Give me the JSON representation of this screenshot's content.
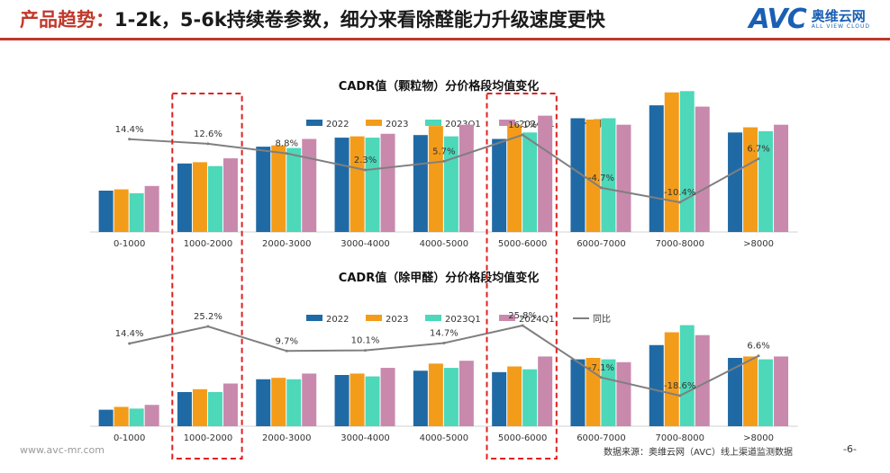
{
  "header": {
    "title_prefix": "产品趋势：",
    "title_main": "1-2k，5-6k持续卷参数，细分来看除醛能力升级速度更快",
    "logo_text": "AVC",
    "logo_cn": "奥维云网",
    "logo_en": "ALL VIEW CLOUD"
  },
  "footer": {
    "website": "www.avc-mr.com",
    "source": "数据来源：奥维云网（AVC）线上渠道监测数据",
    "page": "-6-"
  },
  "colors": {
    "2022": "#1f6aa5",
    "2023": "#f39c1a",
    "2023Q1": "#4cd8b9",
    "2024Q1": "#c989ad",
    "yoy": "#7f7f7f",
    "accent": "#c0392b",
    "highlight_box": "#e02020"
  },
  "chart_data": [
    {
      "type": "bar",
      "title": "CADR值（颗粒物）分价格段均值变化",
      "categories": [
        "0-1000",
        "1000-2000",
        "2000-3000",
        "3000-4000",
        "4000-5000",
        "5000-6000",
        "6000-7000",
        "7000-8000",
        ">8000"
      ],
      "series": [
        {
          "name": "2022",
          "values": [
            160,
            265,
            330,
            365,
            375,
            360,
            440,
            490,
            385
          ]
        },
        {
          "name": "2023",
          "values": [
            165,
            270,
            335,
            370,
            410,
            415,
            435,
            540,
            405
          ]
        },
        {
          "name": "2023Q1",
          "values": [
            150,
            255,
            325,
            365,
            370,
            385,
            440,
            545,
            390
          ]
        },
        {
          "name": "2024Q1",
          "values": [
            178,
            285,
            360,
            380,
            415,
            450,
            415,
            485,
            415
          ]
        }
      ],
      "line": {
        "name": "同比",
        "values": [
          14.4,
          12.6,
          8.8,
          2.3,
          5.7,
          16.1,
          -4.7,
          -10.4,
          6.7
        ],
        "labels": [
          "14.4%",
          "12.6%",
          "8.8%",
          "2.3%",
          "5.7%",
          "16.1%",
          "-4.7%",
          "-10.4%",
          "6.7%"
        ]
      },
      "ylim": [
        0,
        800
      ],
      "legend": "top-center"
    },
    {
      "type": "bar",
      "title": "CADR值（除甲醛）分价格段均值变化",
      "categories": [
        "0-1000",
        "1000-2000",
        "2000-3000",
        "3000-4000",
        "4000-5000",
        "5000-6000",
        "6000-7000",
        "7000-8000",
        ">8000"
      ],
      "series": [
        {
          "name": "2022",
          "values": [
            58,
            120,
            165,
            180,
            195,
            190,
            235,
            285,
            240
          ]
        },
        {
          "name": "2023",
          "values": [
            68,
            130,
            170,
            185,
            220,
            210,
            240,
            330,
            245
          ]
        },
        {
          "name": "2023Q1",
          "values": [
            62,
            120,
            165,
            175,
            205,
            200,
            235,
            355,
            235
          ]
        },
        {
          "name": "2024Q1",
          "values": [
            75,
            150,
            185,
            205,
            230,
            245,
            225,
            320,
            245
          ]
        }
      ],
      "line": {
        "name": "同比",
        "values": [
          14.4,
          25.2,
          9.7,
          10.1,
          14.7,
          25.8,
          -7.1,
          -18.6,
          6.6
        ],
        "labels": [
          "14.4%",
          "25.2%",
          "9.7%",
          "10.1%",
          "14.7%",
          "25.8%",
          "-7.1%",
          "-18.6%",
          "6.6%"
        ]
      },
      "ylim": [
        0,
        600
      ],
      "legend": "top-center"
    }
  ]
}
